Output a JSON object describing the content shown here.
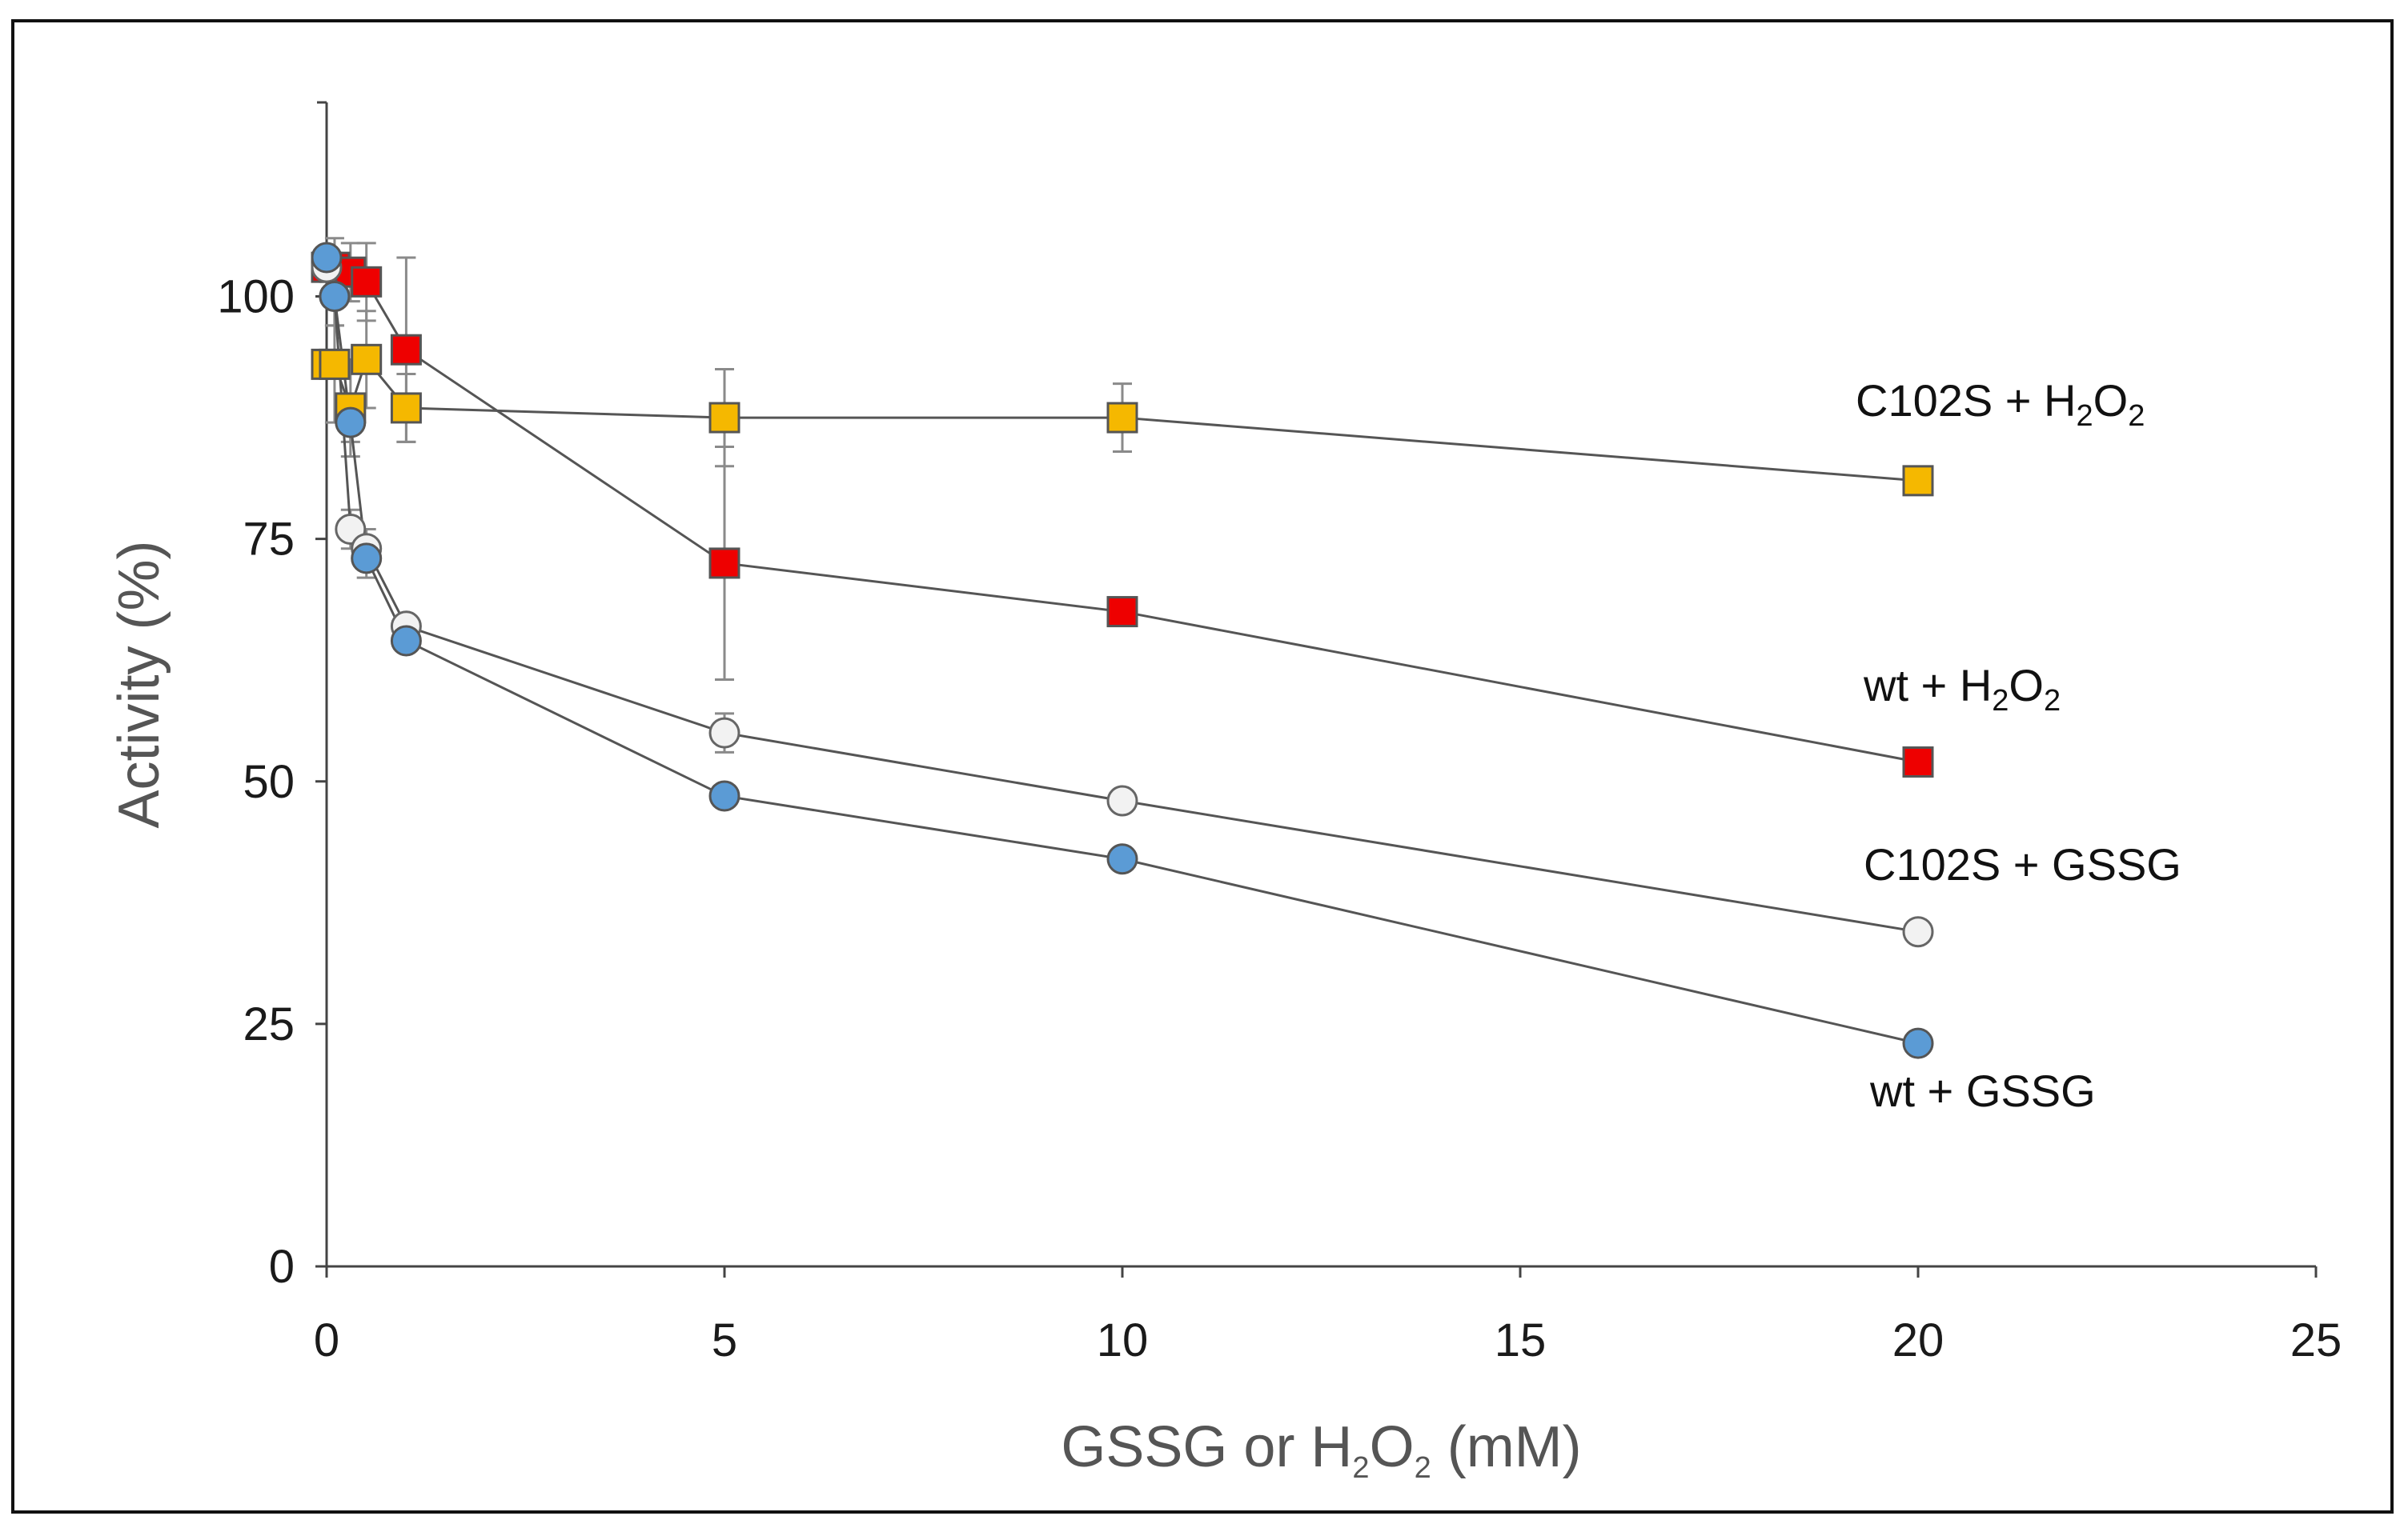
{
  "chart_data": {
    "type": "scatter",
    "title": "",
    "xlabel": "GSSG or H2O2 (mM)",
    "ylabel": "Activity (%)",
    "xlim": [
      0,
      25
    ],
    "ylim": [
      0,
      120
    ],
    "x_ticks": [
      0,
      5,
      10,
      15,
      20,
      25
    ],
    "y_ticks": [
      0,
      25,
      50,
      75,
      100
    ],
    "grid": false,
    "legend": "inline labels at right end of each series",
    "series": [
      {
        "name": "C102S + H2O2",
        "marker": "square",
        "color": "#f5b800",
        "edge": "#555555",
        "x": [
          0,
          0.1,
          0.3,
          0.5,
          1,
          5,
          10,
          20
        ],
        "y": [
          93,
          93,
          88.5,
          93.5,
          88.5,
          87.5,
          87.5,
          81
        ],
        "err": [
          0,
          6,
          5,
          5,
          3.5,
          5,
          3.5,
          0
        ]
      },
      {
        "name": "wt + H2O2",
        "marker": "square",
        "color": "#ee0000",
        "edge": "#555555",
        "x": [
          0,
          0.1,
          0.3,
          0.5,
          1,
          5,
          10,
          20
        ],
        "y": [
          103,
          103,
          102.5,
          101.5,
          94.5,
          72.5,
          67.5,
          52
        ],
        "err": [
          0,
          3,
          3,
          4,
          9.5,
          12,
          0,
          0
        ]
      },
      {
        "name": "C102S + GSSG",
        "marker": "circle",
        "color": "#f2f2f2",
        "edge": "#666666",
        "x": [
          0,
          0.1,
          0.3,
          0.5,
          1,
          5,
          10,
          20
        ],
        "y": [
          103,
          100,
          76,
          74,
          66,
          55,
          48,
          34.5
        ],
        "err": [
          0,
          3,
          2,
          2,
          0,
          2,
          0,
          0
        ]
      },
      {
        "name": "wt + GSSG",
        "marker": "circle",
        "color": "#5b9bd5",
        "edge": "#555555",
        "x": [
          0,
          0.1,
          0.3,
          0.5,
          1,
          5,
          10,
          20
        ],
        "y": [
          104,
          100,
          87,
          73,
          64.5,
          48.5,
          42,
          23
        ],
        "err": [
          0,
          3,
          2,
          2,
          0,
          0,
          0,
          0
        ]
      }
    ],
    "series_labels": [
      {
        "series": 0,
        "text": "C102S + H",
        "sub1": "2",
        "mid": "O",
        "sub2": "2"
      },
      {
        "series": 1,
        "text": "wt + H",
        "sub1": "2",
        "mid": "O",
        "sub2": "2"
      },
      {
        "series": 2,
        "text": "C102S + GSSG"
      },
      {
        "series": 3,
        "text": "wt + GSSG"
      }
    ],
    "xlabel_parts": {
      "pre": "GSSG or H",
      "sub1": "2",
      "mid": "O",
      "sub2": "2",
      "post": "  (mM)"
    }
  }
}
